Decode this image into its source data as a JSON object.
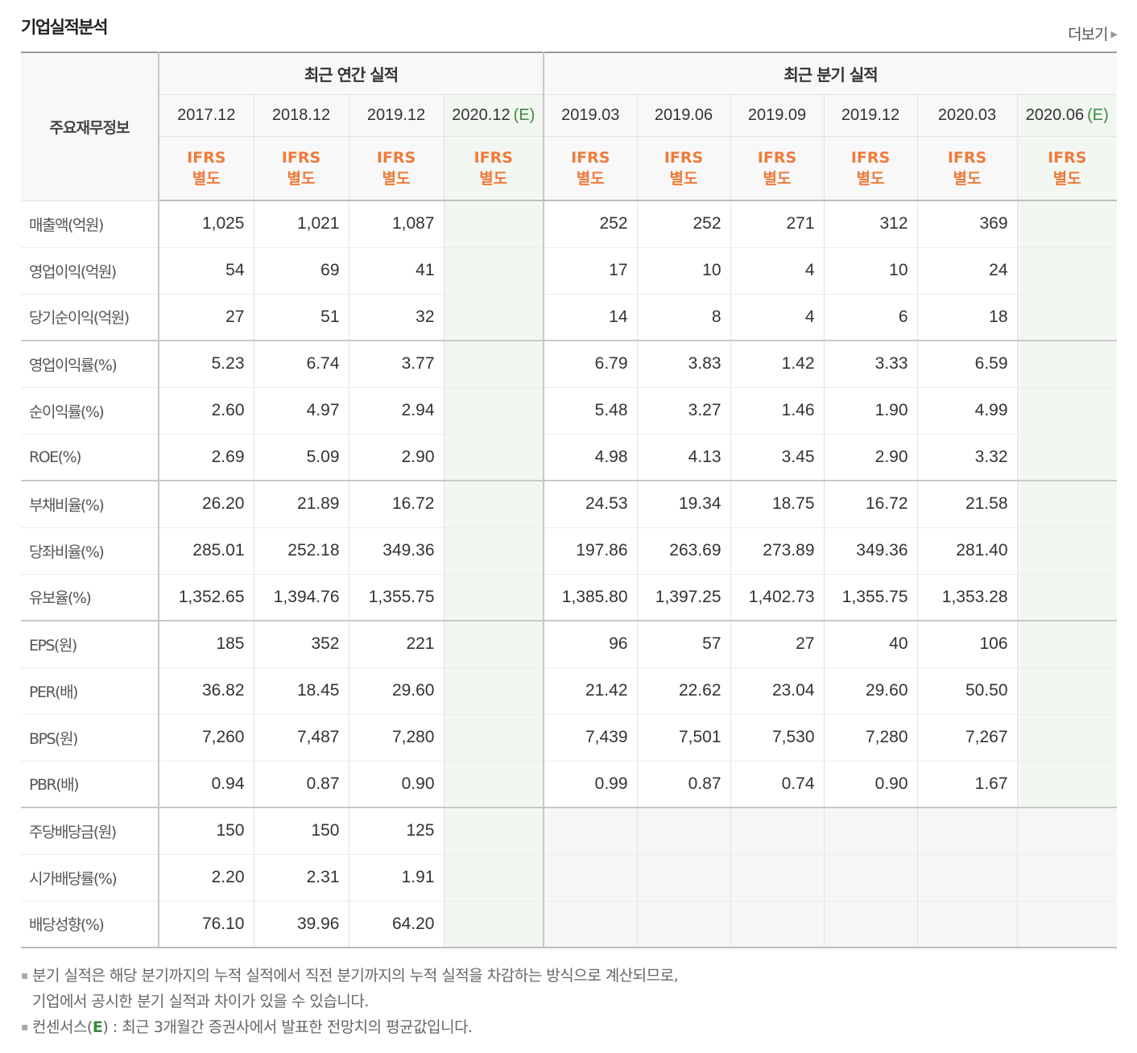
{
  "header": {
    "title": "기업실적분석",
    "more_label": "더보기"
  },
  "table": {
    "label_header": "주요재무정보",
    "group_annual": "최근 연간 실적",
    "group_quarter": "최근 분기 실적",
    "annual_periods": [
      {
        "period": "2017.12",
        "est": "",
        "ifrs1": "IFRS",
        "ifrs2": "별도"
      },
      {
        "period": "2018.12",
        "est": "",
        "ifrs1": "IFRS",
        "ifrs2": "별도"
      },
      {
        "period": "2019.12",
        "est": "",
        "ifrs1": "IFRS",
        "ifrs2": "별도"
      },
      {
        "period": "2020.12",
        "est": "(E)",
        "ifrs1": "IFRS",
        "ifrs2": "별도"
      }
    ],
    "quarter_periods": [
      {
        "period": "2019.03",
        "est": "",
        "ifrs1": "IFRS",
        "ifrs2": "별도"
      },
      {
        "period": "2019.06",
        "est": "",
        "ifrs1": "IFRS",
        "ifrs2": "별도"
      },
      {
        "period": "2019.09",
        "est": "",
        "ifrs1": "IFRS",
        "ifrs2": "별도"
      },
      {
        "period": "2019.12",
        "est": "",
        "ifrs1": "IFRS",
        "ifrs2": "별도"
      },
      {
        "period": "2020.03",
        "est": "",
        "ifrs1": "IFRS",
        "ifrs2": "별도"
      },
      {
        "period": "2020.06",
        "est": "(E)",
        "ifrs1": "IFRS",
        "ifrs2": "별도"
      }
    ],
    "rows": [
      {
        "label": "매출액(억원)",
        "annual": [
          "1,025",
          "1,021",
          "1,087",
          ""
        ],
        "quarter": [
          "252",
          "252",
          "271",
          "312",
          "369",
          ""
        ]
      },
      {
        "label": "영업이익(억원)",
        "annual": [
          "54",
          "69",
          "41",
          ""
        ],
        "quarter": [
          "17",
          "10",
          "4",
          "10",
          "24",
          ""
        ]
      },
      {
        "label": "당기순이익(억원)",
        "annual": [
          "27",
          "51",
          "32",
          ""
        ],
        "quarter": [
          "14",
          "8",
          "4",
          "6",
          "18",
          ""
        ]
      },
      {
        "label": "영업이익률(%)",
        "annual": [
          "5.23",
          "6.74",
          "3.77",
          ""
        ],
        "quarter": [
          "6.79",
          "3.83",
          "1.42",
          "3.33",
          "6.59",
          ""
        ]
      },
      {
        "label": "순이익률(%)",
        "annual": [
          "2.60",
          "4.97",
          "2.94",
          ""
        ],
        "quarter": [
          "5.48",
          "3.27",
          "1.46",
          "1.90",
          "4.99",
          ""
        ]
      },
      {
        "label": "ROE(%)",
        "annual": [
          "2.69",
          "5.09",
          "2.90",
          ""
        ],
        "quarter": [
          "4.98",
          "4.13",
          "3.45",
          "2.90",
          "3.32",
          ""
        ]
      },
      {
        "label": "부채비율(%)",
        "annual": [
          "26.20",
          "21.89",
          "16.72",
          ""
        ],
        "quarter": [
          "24.53",
          "19.34",
          "18.75",
          "16.72",
          "21.58",
          ""
        ]
      },
      {
        "label": "당좌비율(%)",
        "annual": [
          "285.01",
          "252.18",
          "349.36",
          ""
        ],
        "quarter": [
          "197.86",
          "263.69",
          "273.89",
          "349.36",
          "281.40",
          ""
        ]
      },
      {
        "label": "유보율(%)",
        "annual": [
          "1,352.65",
          "1,394.76",
          "1,355.75",
          ""
        ],
        "quarter": [
          "1,385.80",
          "1,397.25",
          "1,402.73",
          "1,355.75",
          "1,353.28",
          ""
        ]
      },
      {
        "label": "EPS(원)",
        "annual": [
          "185",
          "352",
          "221",
          ""
        ],
        "quarter": [
          "96",
          "57",
          "27",
          "40",
          "106",
          ""
        ]
      },
      {
        "label": "PER(배)",
        "annual": [
          "36.82",
          "18.45",
          "29.60",
          ""
        ],
        "quarter": [
          "21.42",
          "22.62",
          "23.04",
          "29.60",
          "50.50",
          ""
        ]
      },
      {
        "label": "BPS(원)",
        "annual": [
          "7,260",
          "7,487",
          "7,280",
          ""
        ],
        "quarter": [
          "7,439",
          "7,501",
          "7,530",
          "7,280",
          "7,267",
          ""
        ]
      },
      {
        "label": "PBR(배)",
        "annual": [
          "0.94",
          "0.87",
          "0.90",
          ""
        ],
        "quarter": [
          "0.99",
          "0.87",
          "0.74",
          "0.90",
          "1.67",
          ""
        ]
      },
      {
        "label": "주당배당금(원)",
        "annual": [
          "150",
          "150",
          "125",
          ""
        ],
        "quarter": [
          "",
          "",
          "",
          "",
          "",
          ""
        ]
      },
      {
        "label": "시가배당률(%)",
        "annual": [
          "2.20",
          "2.31",
          "1.91",
          ""
        ],
        "quarter": [
          "",
          "",
          "",
          "",
          "",
          ""
        ]
      },
      {
        "label": "배당성향(%)",
        "annual": [
          "76.10",
          "39.96",
          "64.20",
          ""
        ],
        "quarter": [
          "",
          "",
          "",
          "",
          "",
          ""
        ]
      }
    ]
  },
  "notes": {
    "note1_line1": "분기 실적은 해당 분기까지의 누적 실적에서 직전 분기까지의 누적 실적을 차감하는 방식으로 계산되므로,",
    "note1_line2": "기업에서 공시한 분기 실적과 차이가 있을 수 있습니다.",
    "note2_prefix": "컨센서스(",
    "note2_em": "E",
    "note2_suffix": ") : 최근 3개월간 증권사에서 발표한 전망치의 평균값입니다."
  },
  "colors": {
    "ifrs": "#ee7b3b",
    "estimate": "#3b8a3b",
    "estimate_bg": "#f3f7f2"
  }
}
